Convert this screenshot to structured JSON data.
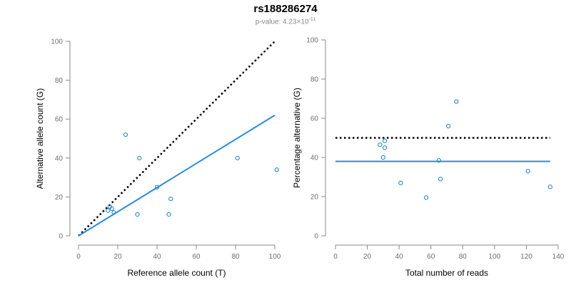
{
  "title": "rs188286274",
  "subtitle": {
    "prefix": "p-value: 4.23×10",
    "exponent": "-11"
  },
  "colors": {
    "fit_line": "#2a8ae0",
    "points": "#1f7fc4",
    "reference_line": "#000000",
    "axis": "#888888"
  },
  "chart_data": [
    {
      "type": "scatter",
      "xlabel": "Reference allele count (T)",
      "ylabel": "Alternative allele count (G)",
      "xlim": [
        0,
        100
      ],
      "ylim": [
        0,
        100
      ],
      "xticks": [
        0,
        20,
        40,
        60,
        80,
        100
      ],
      "yticks": [
        0,
        20,
        40,
        60,
        80,
        100
      ],
      "grid": false,
      "points": [
        {
          "x": 15,
          "y": 13
        },
        {
          "x": 16,
          "y": 15
        },
        {
          "x": 17,
          "y": 14
        },
        {
          "x": 18,
          "y": 12
        },
        {
          "x": 24,
          "y": 52
        },
        {
          "x": 30,
          "y": 11
        },
        {
          "x": 31,
          "y": 40
        },
        {
          "x": 40,
          "y": 25
        },
        {
          "x": 46,
          "y": 11
        },
        {
          "x": 47,
          "y": 19
        },
        {
          "x": 81,
          "y": 40
        },
        {
          "x": 101,
          "y": 34
        }
      ],
      "reference_line": {
        "style": "dotted",
        "x": [
          0,
          100
        ],
        "y": [
          0,
          100
        ]
      },
      "fit_line": {
        "style": "solid",
        "x": [
          0,
          100
        ],
        "y": [
          0,
          62
        ]
      }
    },
    {
      "type": "scatter",
      "xlabel": "Total number of reads",
      "ylabel": "Percentage alternative (G)",
      "xlim": [
        0,
        140
      ],
      "ylim": [
        0,
        100
      ],
      "xticks": [
        0,
        20,
        40,
        60,
        80,
        100,
        120,
        140
      ],
      "yticks": [
        0,
        20,
        40,
        60,
        80,
        100
      ],
      "grid": false,
      "points": [
        {
          "x": 28,
          "y": 46.5
        },
        {
          "x": 30,
          "y": 40
        },
        {
          "x": 31,
          "y": 48.5
        },
        {
          "x": 31,
          "y": 45
        },
        {
          "x": 41,
          "y": 27
        },
        {
          "x": 57,
          "y": 19.5
        },
        {
          "x": 65,
          "y": 38.5
        },
        {
          "x": 66,
          "y": 29
        },
        {
          "x": 71,
          "y": 56
        },
        {
          "x": 76,
          "y": 68.5
        },
        {
          "x": 121,
          "y": 33
        },
        {
          "x": 135,
          "y": 25
        }
      ],
      "reference_line": {
        "style": "dotted",
        "x": [
          0,
          135
        ],
        "y": [
          50,
          50
        ]
      },
      "fit_line": {
        "style": "solid",
        "x": [
          0,
          135
        ],
        "y": [
          38,
          38
        ]
      }
    }
  ]
}
